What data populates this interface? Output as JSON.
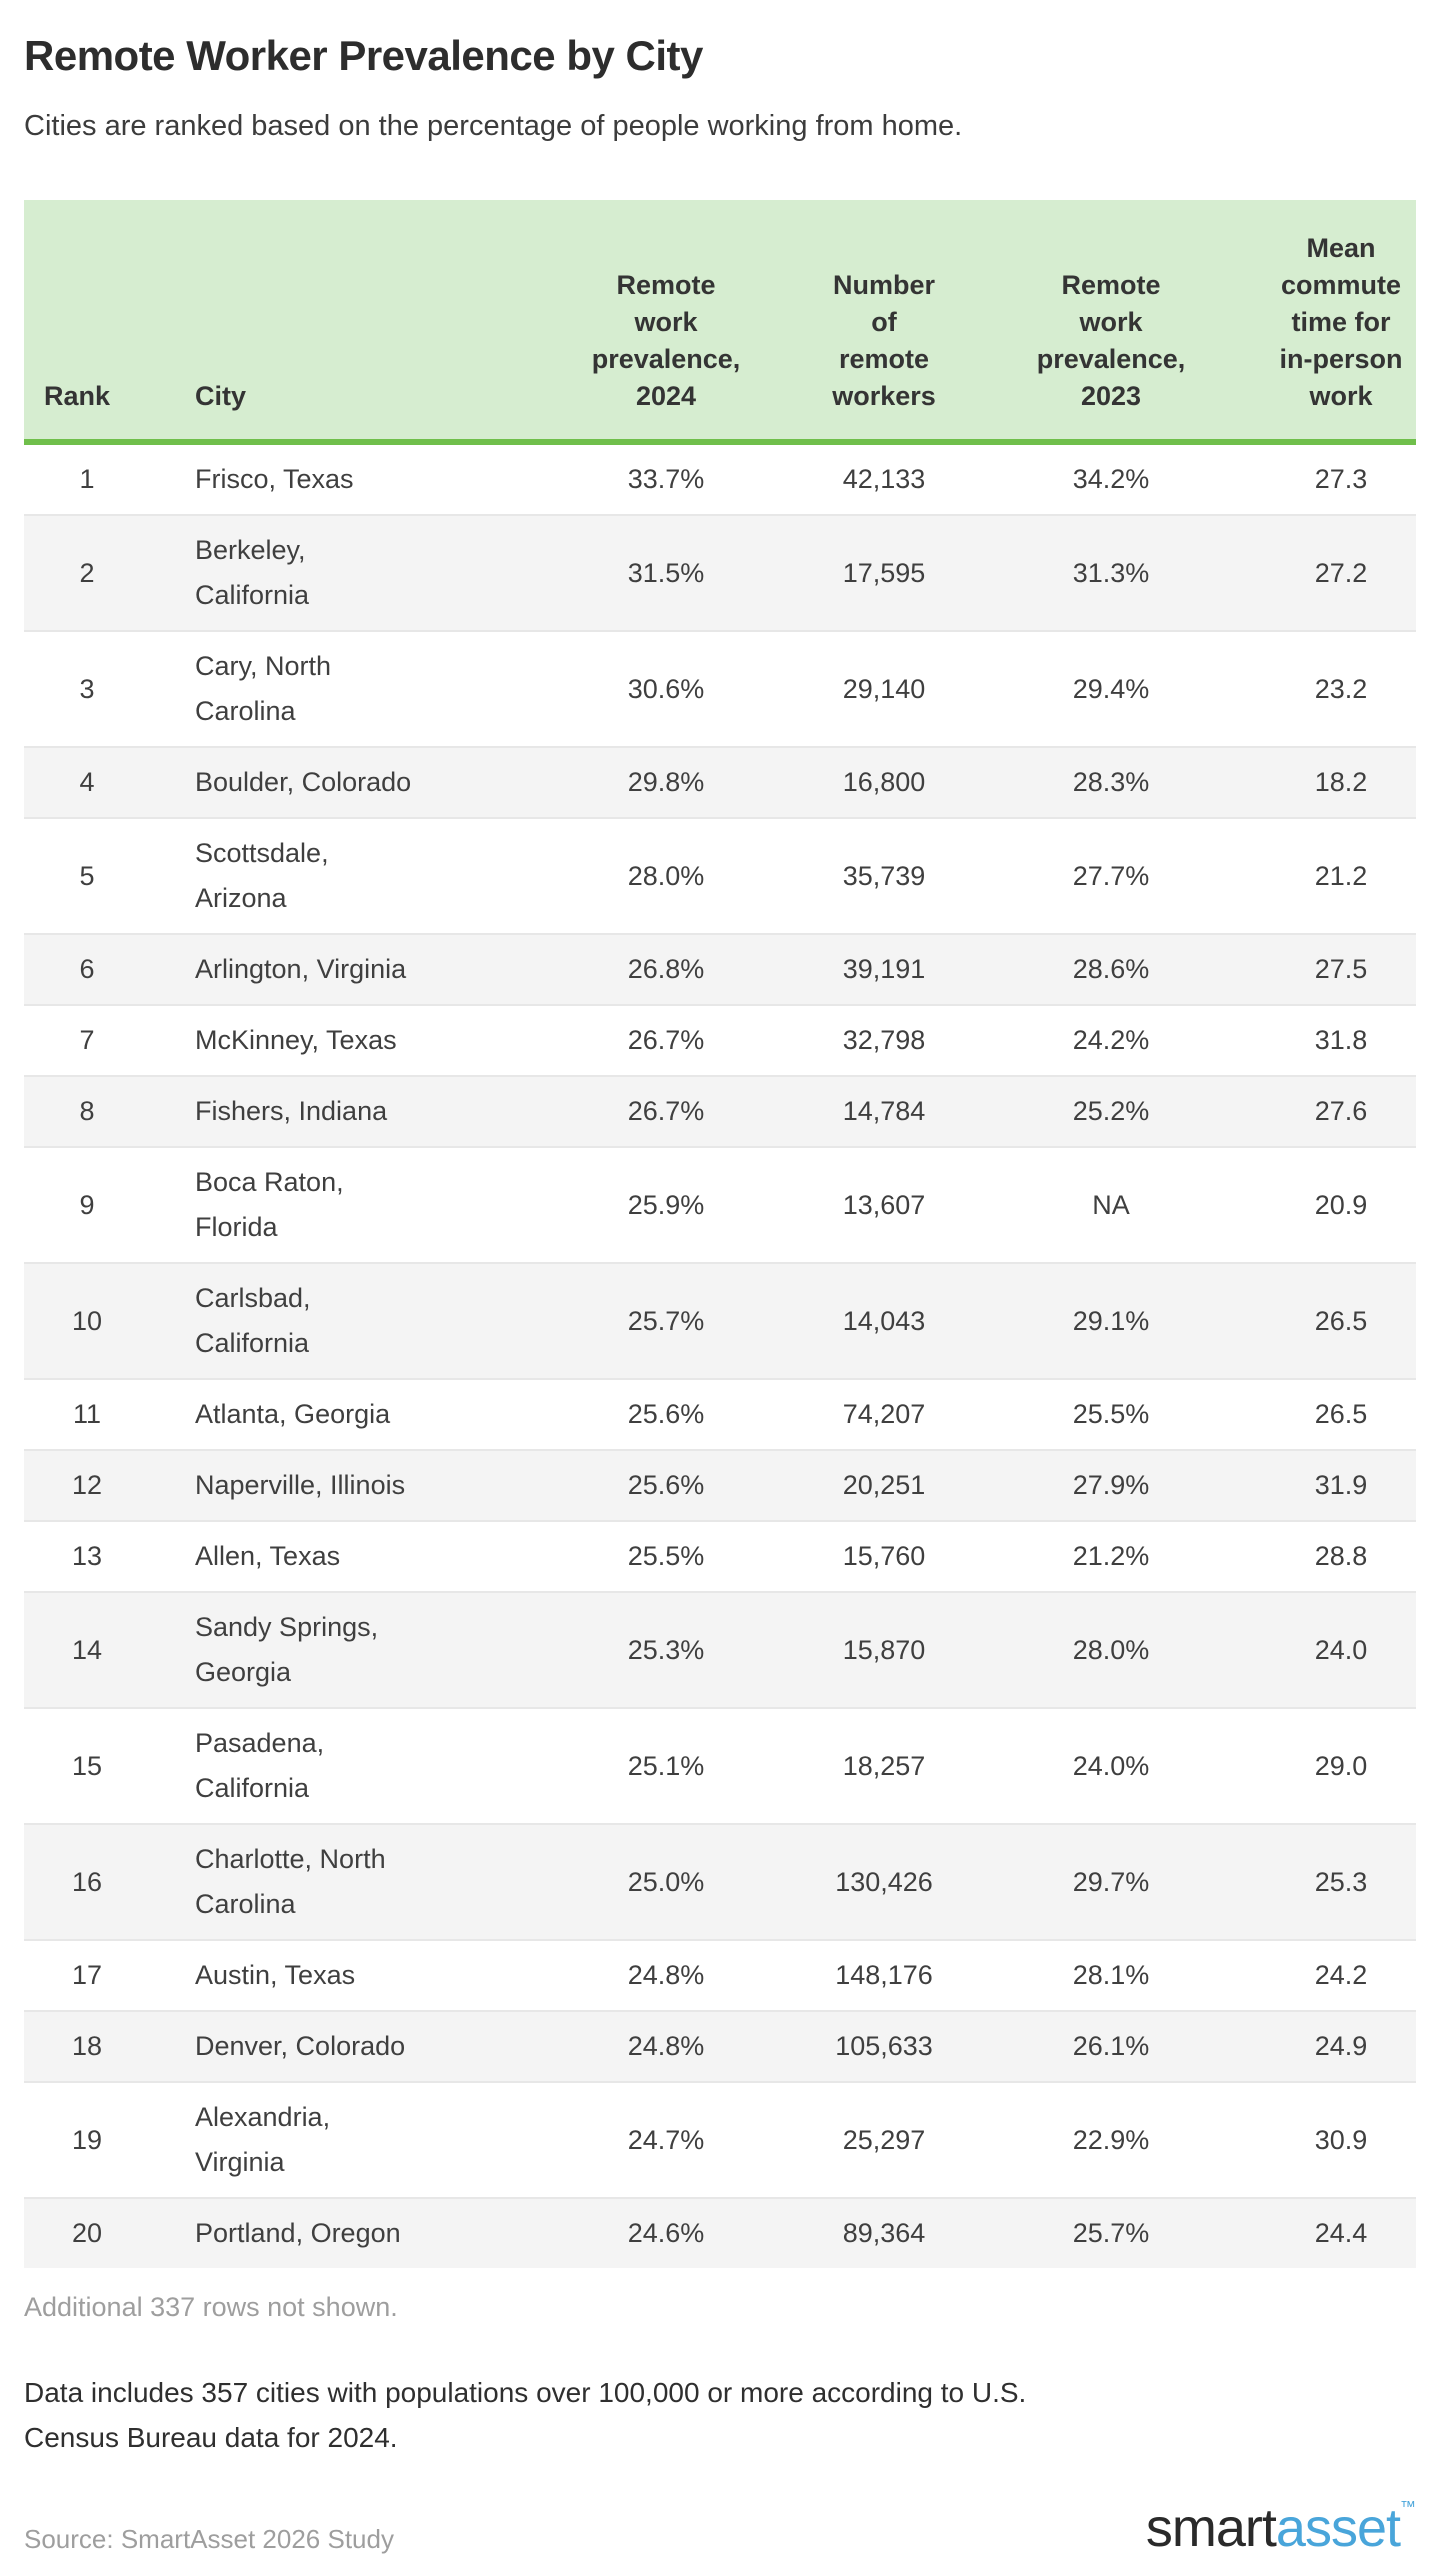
{
  "page": {
    "title": "Remote Worker Prevalence by City",
    "subtitle": "Cities are ranked based on the percentage of people working from home.",
    "additional_note": "Additional 337 rows not shown.",
    "data_note": "Data includes 357 cities with populations over 100,000 or more according to U.S.\nCensus Bureau data for 2024.",
    "source": "Source: SmartAsset 2026 Study",
    "logo": {
      "part1": "smart",
      "part2": "asset",
      "tm": "™"
    }
  },
  "colors": {
    "header_bg": "#d6edd0",
    "header_rule": "#70bf4b",
    "alt_row_bg": "#f4f4f4",
    "row_separator": "#e7e7e7",
    "muted_text": "#9e9e9e",
    "body_text": "#3f3f3f",
    "logo_blue": "#49a5da",
    "logo_dark": "#2a2a2a"
  },
  "chart_data": {
    "type": "table",
    "title": "Remote Worker Prevalence by City",
    "columns": [
      {
        "key": "rank",
        "label": "Rank"
      },
      {
        "key": "city",
        "label": "City"
      },
      {
        "key": "prevalence_2024",
        "label": "Remote\nwork\nprevalence,\n2024"
      },
      {
        "key": "remote_workers",
        "label": "Number\nof\nremote\nworkers"
      },
      {
        "key": "prevalence_2023",
        "label": "Remote\nwork\nprevalence,\n2023"
      },
      {
        "key": "mean_commute",
        "label": "Mean\ncommute\ntime for\nin-person\nwork"
      }
    ],
    "rows": [
      {
        "rank": "1",
        "city": "Frisco, Texas",
        "prevalence_2024": "33.7%",
        "remote_workers": "42,133",
        "prevalence_2023": "34.2%",
        "mean_commute": "27.3"
      },
      {
        "rank": "2",
        "city": "Berkeley,\nCalifornia",
        "prevalence_2024": "31.5%",
        "remote_workers": "17,595",
        "prevalence_2023": "31.3%",
        "mean_commute": "27.2"
      },
      {
        "rank": "3",
        "city": "Cary, North\nCarolina",
        "prevalence_2024": "30.6%",
        "remote_workers": "29,140",
        "prevalence_2023": "29.4%",
        "mean_commute": "23.2"
      },
      {
        "rank": "4",
        "city": "Boulder, Colorado",
        "prevalence_2024": "29.8%",
        "remote_workers": "16,800",
        "prevalence_2023": "28.3%",
        "mean_commute": "18.2"
      },
      {
        "rank": "5",
        "city": "Scottsdale,\nArizona",
        "prevalence_2024": "28.0%",
        "remote_workers": "35,739",
        "prevalence_2023": "27.7%",
        "mean_commute": "21.2"
      },
      {
        "rank": "6",
        "city": "Arlington, Virginia",
        "prevalence_2024": "26.8%",
        "remote_workers": "39,191",
        "prevalence_2023": "28.6%",
        "mean_commute": "27.5"
      },
      {
        "rank": "7",
        "city": "McKinney, Texas",
        "prevalence_2024": "26.7%",
        "remote_workers": "32,798",
        "prevalence_2023": "24.2%",
        "mean_commute": "31.8"
      },
      {
        "rank": "8",
        "city": "Fishers, Indiana",
        "prevalence_2024": "26.7%",
        "remote_workers": "14,784",
        "prevalence_2023": "25.2%",
        "mean_commute": "27.6"
      },
      {
        "rank": "9",
        "city": "Boca Raton,\nFlorida",
        "prevalence_2024": "25.9%",
        "remote_workers": "13,607",
        "prevalence_2023": "NA",
        "mean_commute": "20.9"
      },
      {
        "rank": "10",
        "city": "Carlsbad,\nCalifornia",
        "prevalence_2024": "25.7%",
        "remote_workers": "14,043",
        "prevalence_2023": "29.1%",
        "mean_commute": "26.5"
      },
      {
        "rank": "11",
        "city": "Atlanta, Georgia",
        "prevalence_2024": "25.6%",
        "remote_workers": "74,207",
        "prevalence_2023": "25.5%",
        "mean_commute": "26.5"
      },
      {
        "rank": "12",
        "city": "Naperville, Illinois",
        "prevalence_2024": "25.6%",
        "remote_workers": "20,251",
        "prevalence_2023": "27.9%",
        "mean_commute": "31.9"
      },
      {
        "rank": "13",
        "city": "Allen, Texas",
        "prevalence_2024": "25.5%",
        "remote_workers": "15,760",
        "prevalence_2023": "21.2%",
        "mean_commute": "28.8"
      },
      {
        "rank": "14",
        "city": "Sandy Springs,\nGeorgia",
        "prevalence_2024": "25.3%",
        "remote_workers": "15,870",
        "prevalence_2023": "28.0%",
        "mean_commute": "24.0"
      },
      {
        "rank": "15",
        "city": "Pasadena,\nCalifornia",
        "prevalence_2024": "25.1%",
        "remote_workers": "18,257",
        "prevalence_2023": "24.0%",
        "mean_commute": "29.0"
      },
      {
        "rank": "16",
        "city": "Charlotte, North\nCarolina",
        "prevalence_2024": "25.0%",
        "remote_workers": "130,426",
        "prevalence_2023": "29.7%",
        "mean_commute": "25.3"
      },
      {
        "rank": "17",
        "city": "Austin, Texas",
        "prevalence_2024": "24.8%",
        "remote_workers": "148,176",
        "prevalence_2023": "28.1%",
        "mean_commute": "24.2"
      },
      {
        "rank": "18",
        "city": "Denver, Colorado",
        "prevalence_2024": "24.8%",
        "remote_workers": "105,633",
        "prevalence_2023": "26.1%",
        "mean_commute": "24.9"
      },
      {
        "rank": "19",
        "city": "Alexandria,\nVirginia",
        "prevalence_2024": "24.7%",
        "remote_workers": "25,297",
        "prevalence_2023": "22.9%",
        "mean_commute": "30.9"
      },
      {
        "rank": "20",
        "city": "Portland, Oregon",
        "prevalence_2024": "24.6%",
        "remote_workers": "89,364",
        "prevalence_2023": "25.7%",
        "mean_commute": "24.4"
      }
    ]
  }
}
